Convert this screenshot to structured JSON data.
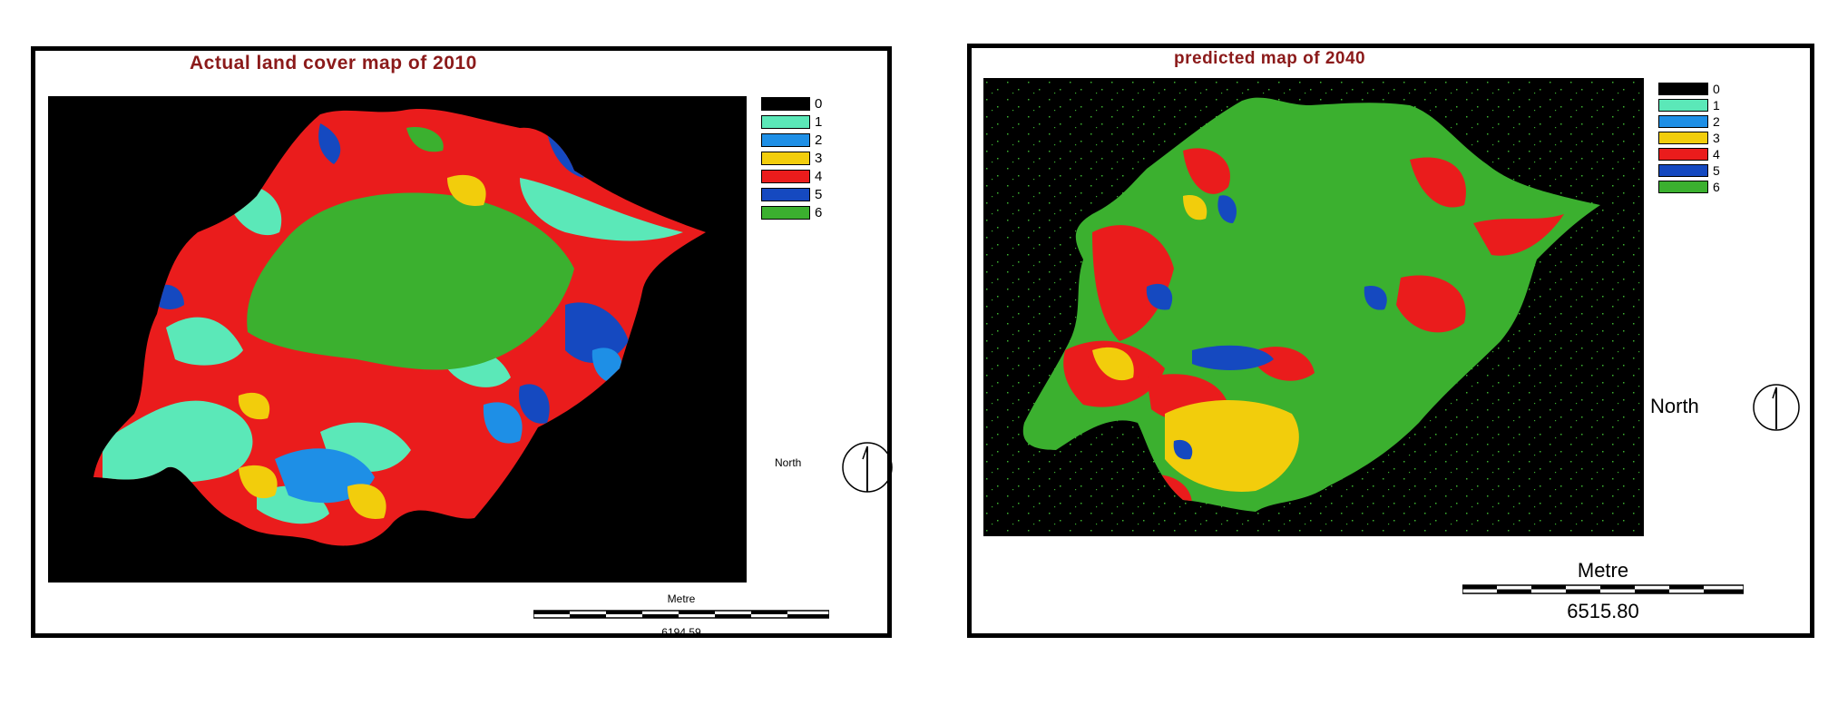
{
  "panels": [
    {
      "title": "Actual land cover map of 2010",
      "north_label": "North",
      "scale_unit": "Metre",
      "scale_value": "6194.59"
    },
    {
      "title": "predicted map of 2040",
      "north_label": "North",
      "scale_unit": "Metre",
      "scale_value": "6515.80"
    }
  ],
  "legend": {
    "classes": [
      {
        "label": "0",
        "color": "#000000"
      },
      {
        "label": "1",
        "color": "#5be8b8"
      },
      {
        "label": "2",
        "color": "#1e8fe6"
      },
      {
        "label": "3",
        "color": "#f2cd0c"
      },
      {
        "label": "4",
        "color": "#ea1c1c"
      },
      {
        "label": "5",
        "color": "#1549c0"
      },
      {
        "label": "6",
        "color": "#3bb02f"
      }
    ]
  },
  "colors": {
    "title": "#8b1a1a",
    "background": "#000000",
    "frame": "#000000"
  }
}
